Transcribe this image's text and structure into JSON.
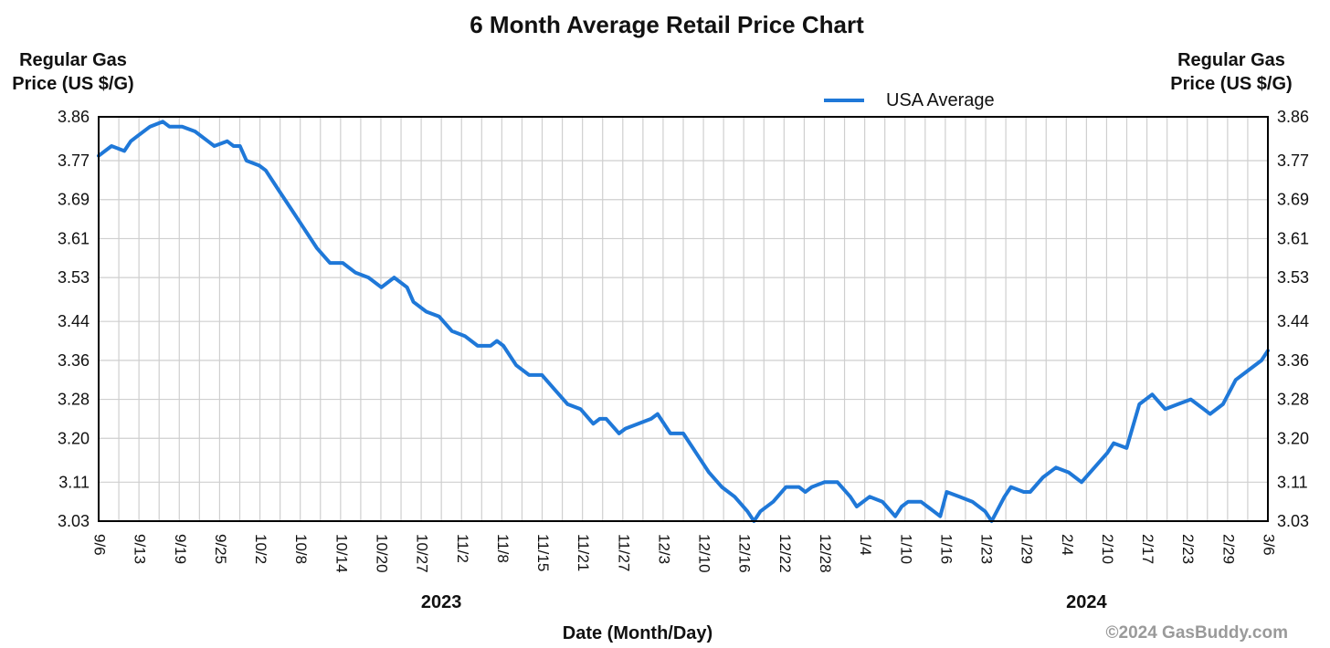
{
  "chart_data": {
    "type": "line",
    "title": "6 Month Average Retail Price Chart",
    "ylabel": "Regular Gas Price (US $/G)",
    "ylabel_left_lines": [
      "Regular Gas",
      "Price (US $/G)"
    ],
    "ylabel_right_lines": [
      "Regular Gas",
      "Price (US $/G)"
    ],
    "xlabel": "Date (Month/Day)",
    "ylim": [
      3.03,
      3.86
    ],
    "yticks": [
      "3.03",
      "3.11",
      "3.20",
      "3.28",
      "3.36",
      "3.44",
      "3.53",
      "3.61",
      "3.69",
      "3.77",
      "3.86"
    ],
    "xticks": [
      "9/6",
      "9/13",
      "9/19",
      "9/25",
      "10/2",
      "10/8",
      "10/14",
      "10/20",
      "10/27",
      "11/2",
      "11/8",
      "11/15",
      "11/21",
      "11/27",
      "12/3",
      "12/10",
      "12/16",
      "12/22",
      "12/28",
      "1/4",
      "1/10",
      "1/16",
      "1/23",
      "1/29",
      "2/4",
      "2/10",
      "2/17",
      "2/23",
      "2/29",
      "3/6"
    ],
    "year_labels": [
      {
        "label": "2023",
        "after_tick": "10/27"
      },
      {
        "label": "2024",
        "after_tick": "2/4"
      }
    ],
    "grid": true,
    "legend_position": "top-right",
    "copyright": "©2024 GasBuddy.com",
    "color": "#1f78d8",
    "series": [
      {
        "name": "USA Average",
        "x": [
          "2023-09-06",
          "2023-09-08",
          "2023-09-10",
          "2023-09-11",
          "2023-09-12",
          "2023-09-14",
          "2023-09-16",
          "2023-09-17",
          "2023-09-18",
          "2023-09-19",
          "2023-09-21",
          "2023-09-23",
          "2023-09-24",
          "2023-09-26",
          "2023-09-27",
          "2023-09-28",
          "2023-09-29",
          "2023-10-01",
          "2023-10-02",
          "2023-10-04",
          "2023-10-06",
          "2023-10-08",
          "2023-10-10",
          "2023-10-12",
          "2023-10-14",
          "2023-10-16",
          "2023-10-18",
          "2023-10-20",
          "2023-10-22",
          "2023-10-24",
          "2023-10-25",
          "2023-10-27",
          "2023-10-29",
          "2023-10-31",
          "2023-11-02",
          "2023-11-04",
          "2023-11-06",
          "2023-11-07",
          "2023-11-08",
          "2023-11-10",
          "2023-11-12",
          "2023-11-14",
          "2023-11-16",
          "2023-11-18",
          "2023-11-20",
          "2023-11-22",
          "2023-11-23",
          "2023-11-24",
          "2023-11-26",
          "2023-11-27",
          "2023-11-29",
          "2023-12-01",
          "2023-12-02",
          "2023-12-04",
          "2023-12-06",
          "2023-12-08",
          "2023-12-10",
          "2023-12-12",
          "2023-12-14",
          "2023-12-16",
          "2023-12-17",
          "2023-12-18",
          "2023-12-20",
          "2023-12-22",
          "2023-12-24",
          "2023-12-25",
          "2023-12-26",
          "2023-12-28",
          "2023-12-30",
          "2024-01-01",
          "2024-01-02",
          "2024-01-04",
          "2024-01-06",
          "2024-01-08",
          "2024-01-09",
          "2024-01-10",
          "2024-01-12",
          "2024-01-14",
          "2024-01-15",
          "2024-01-16",
          "2024-01-18",
          "2024-01-20",
          "2024-01-22",
          "2024-01-23",
          "2024-01-25",
          "2024-01-26",
          "2024-01-28",
          "2024-01-29",
          "2024-01-31",
          "2024-02-02",
          "2024-02-04",
          "2024-02-06",
          "2024-02-08",
          "2024-02-10",
          "2024-02-11",
          "2024-02-13",
          "2024-02-15",
          "2024-02-17",
          "2024-02-19",
          "2024-02-21",
          "2024-02-23",
          "2024-02-25",
          "2024-02-26",
          "2024-02-28",
          "2024-03-01",
          "2024-03-03",
          "2024-03-05",
          "2024-03-06"
        ],
        "values": [
          3.78,
          3.8,
          3.79,
          3.81,
          3.82,
          3.84,
          3.85,
          3.84,
          3.84,
          3.84,
          3.83,
          3.81,
          3.8,
          3.81,
          3.8,
          3.8,
          3.77,
          3.76,
          3.75,
          3.71,
          3.67,
          3.63,
          3.59,
          3.56,
          3.56,
          3.54,
          3.53,
          3.51,
          3.53,
          3.51,
          3.48,
          3.46,
          3.45,
          3.42,
          3.41,
          3.39,
          3.39,
          3.4,
          3.39,
          3.35,
          3.33,
          3.33,
          3.3,
          3.27,
          3.26,
          3.23,
          3.24,
          3.24,
          3.21,
          3.22,
          3.23,
          3.24,
          3.25,
          3.21,
          3.21,
          3.17,
          3.13,
          3.1,
          3.08,
          3.05,
          3.03,
          3.05,
          3.07,
          3.1,
          3.1,
          3.09,
          3.1,
          3.11,
          3.11,
          3.08,
          3.06,
          3.08,
          3.07,
          3.04,
          3.06,
          3.07,
          3.07,
          3.05,
          3.04,
          3.09,
          3.08,
          3.07,
          3.05,
          3.03,
          3.08,
          3.1,
          3.09,
          3.09,
          3.12,
          3.14,
          3.13,
          3.11,
          3.14,
          3.17,
          3.19,
          3.18,
          3.27,
          3.29,
          3.26,
          3.27,
          3.28,
          3.26,
          3.25,
          3.27,
          3.32,
          3.34,
          3.36,
          3.38
        ]
      }
    ]
  }
}
